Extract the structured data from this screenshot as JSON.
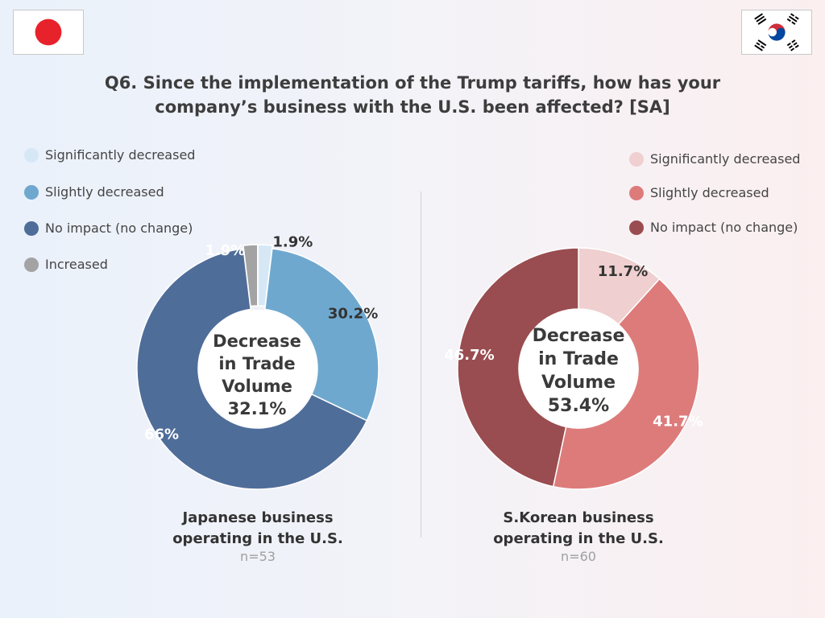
{
  "title_line1": "Q6. Since the implementation of the Trump tariffs, how has your",
  "title_line2": "company’s business with the U.S. been affected? [SA]",
  "flags": {
    "left": "japan-flag",
    "right": "south-korea-flag"
  },
  "chart_data": [
    {
      "type": "pie",
      "group": "Japanese business operating in the U.S.",
      "caption_line1": "Japanese business",
      "caption_line2": "operating in the U.S.",
      "n": "n=53",
      "center_line1": "Decrease",
      "center_line2": "in Trade",
      "center_line3": "Volume",
      "center_value": "32.1%",
      "legend": [
        "Significantly decreased",
        "Slightly decreased",
        "No impact (no change)",
        "Increased"
      ],
      "slices": [
        {
          "name": "Significantly decreased",
          "value": 1.9,
          "label": "1.9%",
          "color": "#d6e8f6"
        },
        {
          "name": "Slightly decreased",
          "value": 30.2,
          "label": "30.2%",
          "color": "#6fa8cf"
        },
        {
          "name": "No impact (no change)",
          "value": 66,
          "label": "66%",
          "color": "#4f6d99"
        },
        {
          "name": "Increased",
          "value": 1.9,
          "label": "1.9%",
          "color": "#a3a3a3"
        }
      ]
    },
    {
      "type": "pie",
      "group": "S.Korean business operating in the U.S.",
      "caption_line1": "S.Korean business",
      "caption_line2": "operating in the U.S.",
      "n": "n=60",
      "center_line1": "Decrease",
      "center_line2": "in Trade",
      "center_line3": "Volume",
      "center_value": "53.4%",
      "legend": [
        "Significantly decreased",
        "Slightly decreased",
        "No impact (no change)"
      ],
      "slices": [
        {
          "name": "Significantly decreased",
          "value": 11.7,
          "label": "11.7%",
          "color": "#efcfcf"
        },
        {
          "name": "Slightly decreased",
          "value": 41.7,
          "label": "41.7%",
          "color": "#dd7b7b"
        },
        {
          "name": "No impact (no change)",
          "value": 46.7,
          "label": "46.7%",
          "color": "#994d50"
        }
      ]
    }
  ]
}
